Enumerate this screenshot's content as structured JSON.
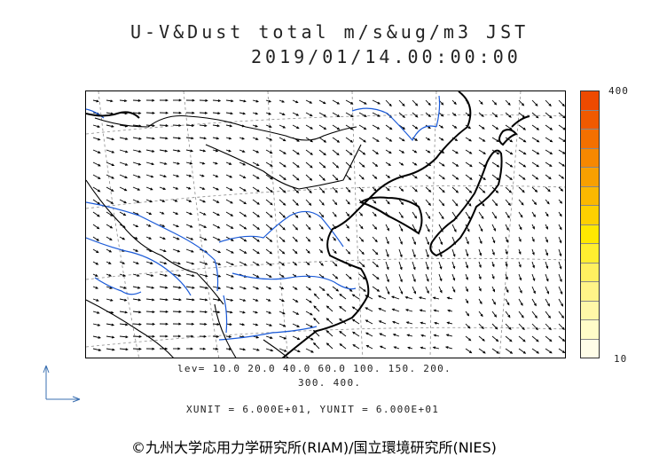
{
  "header": {
    "title": "U-V&Dust total m/s&ug/m3 JST",
    "datetime": "2019/01/14.00:00:00"
  },
  "map": {
    "coastline_color": "#000000",
    "border_color": "#000000",
    "river_color": "#1a5ad8",
    "vector_color": "#000000",
    "graticule_color": "#888888"
  },
  "colorbar": {
    "max_label": "400",
    "min_label": "10",
    "colors_bottom_to_top": [
      "#fffde8",
      "#fffcc8",
      "#fff8a8",
      "#fff488",
      "#fff060",
      "#ffee30",
      "#ffe800",
      "#fed000",
      "#fbb800",
      "#f8a000",
      "#f68800",
      "#f37000",
      "#f05a00",
      "#ee4a00"
    ]
  },
  "levels": {
    "line1": "lev= 10.0 20.0 40.0 60.0 100. 150. 200.",
    "line2": "300. 400."
  },
  "units": "XUNIT = 6.000E+01, YUNIT = 6.000E+01",
  "copyright": "©九州大学応用力学研究所(RIAM)/国立環境研究所(NIES)"
}
